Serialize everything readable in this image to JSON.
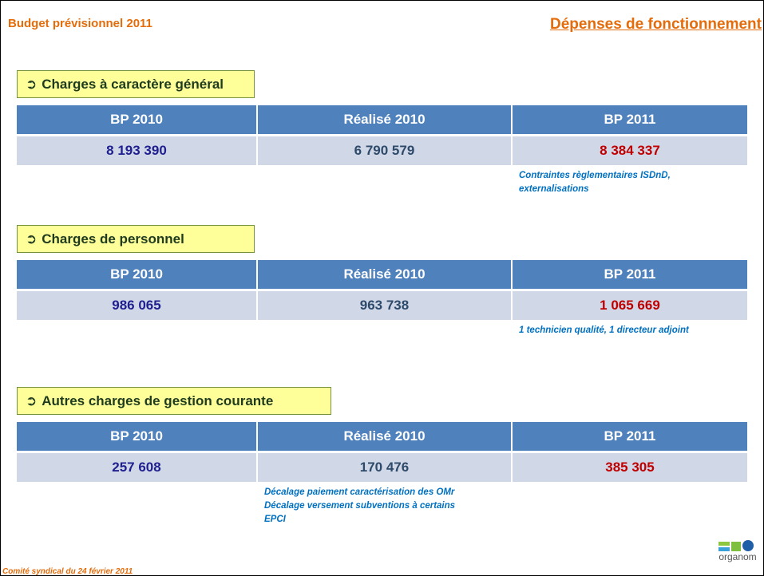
{
  "header": {
    "title": "Budget prévisionnel 2011",
    "section_title": "Dépenses de fonctionnement"
  },
  "sections": [
    {
      "title": "Charges à caractère général",
      "columns": [
        "BP 2010",
        "Réalisé 2010",
        "BP 2011"
      ],
      "values": [
        "8 193 390",
        "6 790 579",
        "8 384 337"
      ],
      "note": {
        "column": 2,
        "lines": [
          "Contraintes règlementaires ISDnD,",
          "externalisations"
        ]
      }
    },
    {
      "title": "Charges de personnel",
      "columns": [
        "BP 2010",
        "Réalisé 2010",
        "BP 2011"
      ],
      "values": [
        "986 065",
        "963 738",
        "1 065 669"
      ],
      "note": {
        "column": 2,
        "lines": [
          "1 technicien qualité, 1 directeur adjoint"
        ]
      }
    },
    {
      "title": "Autres charges de gestion courante",
      "columns": [
        "BP 2010",
        "Réalisé 2010",
        "BP 2011"
      ],
      "values": [
        "257 608",
        "170 476",
        "385 305"
      ],
      "note": {
        "column": 1,
        "lines": [
          "Décalage paiement caractérisation des OMr",
          "Décalage versement subventions à certains",
          "EPCI"
        ]
      }
    }
  ],
  "footer": {
    "text": "Comité syndical du 24 février 2011",
    "logo": "organom"
  }
}
